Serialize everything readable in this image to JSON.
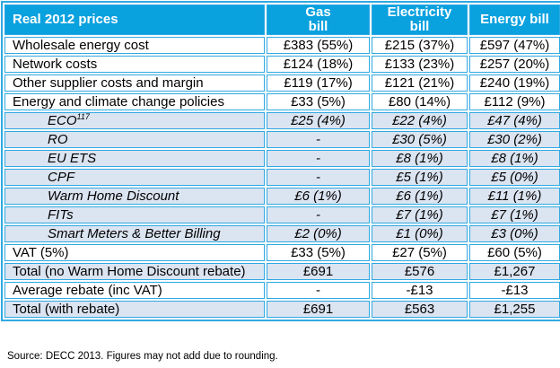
{
  "colors": {
    "header_bg": "#0aa1df",
    "header_text": "#ffffff",
    "border": "#2fa9e2",
    "shaded_row_bg": "#dbe4f1",
    "text": "#000000"
  },
  "table": {
    "columns": [
      {
        "label": "Real 2012 prices"
      },
      {
        "label": "Gas\nbill"
      },
      {
        "label": "Electricity\nbill"
      },
      {
        "label": "Energy bill"
      }
    ],
    "rows": [
      {
        "label": "Wholesale energy cost",
        "style": "plain",
        "values": [
          "£383 (55%)",
          "£215 (37%)",
          "£597 (47%)"
        ]
      },
      {
        "label": "Network costs",
        "style": "plain",
        "values": [
          "£124 (18%)",
          "£133 (23%)",
          "£257 (20%)"
        ]
      },
      {
        "label": "Other supplier costs and margin",
        "style": "plain",
        "values": [
          "£119 (17%)",
          "£121 (21%)",
          "£240 (19%)"
        ]
      },
      {
        "label": "Energy and climate change policies",
        "style": "plain",
        "values": [
          "£33 (5%)",
          "£80 (14%)",
          "£112 (9%)"
        ]
      },
      {
        "label": "ECO",
        "sup": "117",
        "style": "sub",
        "values": [
          "£25 (4%)",
          "£22 (4%)",
          "£47 (4%)"
        ]
      },
      {
        "label": "RO",
        "style": "sub",
        "values": [
          "-",
          "£30 (5%)",
          "£30 (2%)"
        ]
      },
      {
        "label": "EU ETS",
        "style": "sub",
        "values": [
          "-",
          "£8 (1%)",
          "£8 (1%)"
        ]
      },
      {
        "label": "CPF",
        "style": "sub",
        "values": [
          "-",
          "£5 (1%)",
          "£5 (0%)"
        ]
      },
      {
        "label": "Warm Home Discount",
        "style": "sub",
        "values": [
          "£6 (1%)",
          "£6 (1%)",
          "£11 (1%)"
        ]
      },
      {
        "label": "FITs",
        "style": "sub",
        "values": [
          "-",
          "£7 (1%)",
          "£7 (1%)"
        ]
      },
      {
        "label": "Smart Meters & Better Billing",
        "style": "sub",
        "values": [
          "£2 (0%)",
          "£1 (0%)",
          "£3 (0%)"
        ]
      },
      {
        "label": "VAT (5%)",
        "style": "plain",
        "values": [
          "£33 (5%)",
          "£27 (5%)",
          "£60 (5%)"
        ]
      },
      {
        "label": "Total (no Warm Home Discount rebate)",
        "style": "total",
        "values": [
          "£691",
          "£576",
          "£1,267"
        ]
      },
      {
        "label": "Average rebate (inc VAT)",
        "style": "plain",
        "values": [
          "-",
          "-£13",
          "-£13"
        ]
      },
      {
        "label": "Total (with rebate)",
        "style": "total",
        "values": [
          "£691",
          "£563",
          "£1,255"
        ]
      }
    ]
  },
  "footer": {
    "source_note": "Source: DECC 2013. Figures may not add due to rounding."
  }
}
